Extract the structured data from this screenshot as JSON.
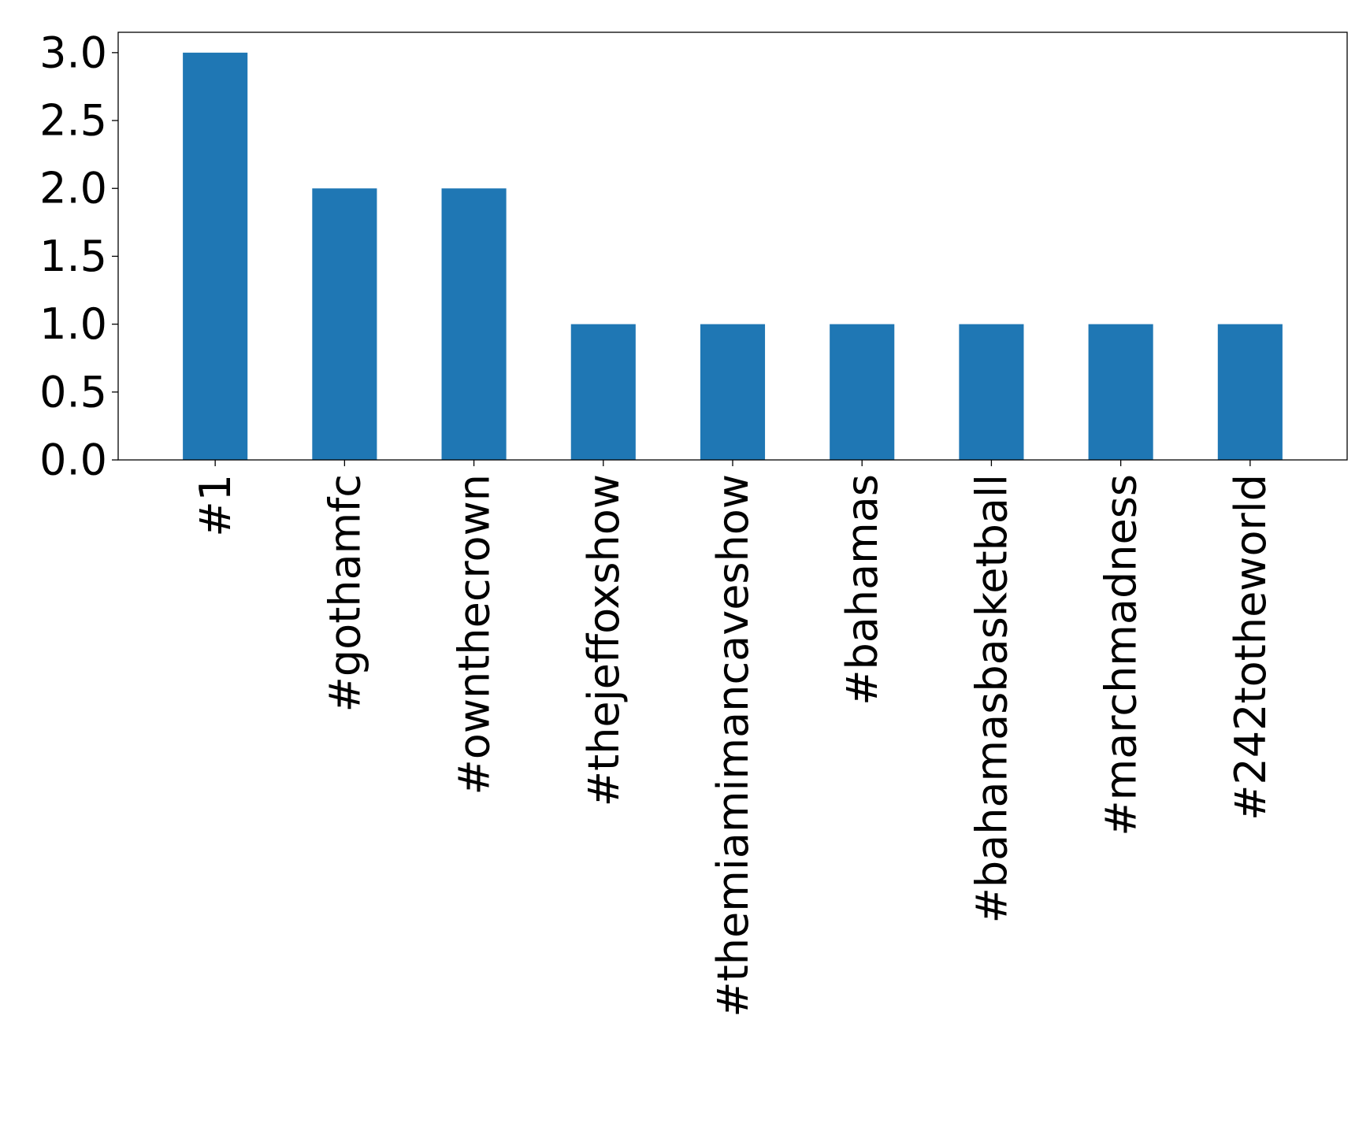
{
  "chart_data": {
    "type": "bar",
    "title": "",
    "xlabel": "",
    "ylabel": "",
    "categories": [
      "#1",
      "#gothamfc",
      "#ownthecrown",
      "#thejeffoxshow",
      "#themiamimancaveshow",
      "#bahamas",
      "#bahamasbasketball",
      "#marchmadness",
      "#242totheworld"
    ],
    "values": [
      3,
      2,
      2,
      1,
      1,
      1,
      1,
      1,
      1
    ],
    "ylim": [
      0,
      3.15
    ],
    "yticks": [
      0.0,
      0.5,
      1.0,
      1.5,
      2.0,
      2.5,
      3.0
    ],
    "ytick_labels": [
      "0.0",
      "0.5",
      "1.0",
      "1.5",
      "2.0",
      "2.5",
      "3.0"
    ],
    "grid": false,
    "legend": "none",
    "colors": {
      "bar": "#1f77b4",
      "axes": "#000000",
      "background": "#ffffff"
    }
  }
}
